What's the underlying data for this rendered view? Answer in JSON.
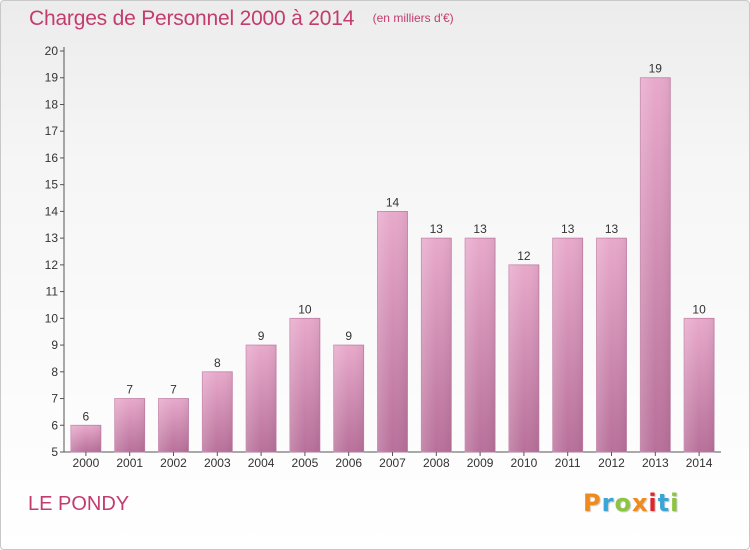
{
  "header": {
    "title": "Charges de Personnel 2000 à 2014",
    "subtitle": "(en milliers d'€)"
  },
  "footer": {
    "commune": "LE PONDY",
    "logo_text": "Proxiti",
    "logo_colors": [
      "#f08a1c",
      "#3aa5d8",
      "#8cc63e",
      "#f08a1c",
      "#e0252a",
      "#3aa5d8",
      "#8cc63e"
    ]
  },
  "chart_data": {
    "type": "bar",
    "categories": [
      "2000",
      "2001",
      "2002",
      "2003",
      "2004",
      "2005",
      "2006",
      "2007",
      "2008",
      "2009",
      "2010",
      "2011",
      "2012",
      "2013",
      "2014"
    ],
    "values": [
      6,
      7,
      7,
      8,
      9,
      10,
      9,
      14,
      13,
      13,
      12,
      13,
      13,
      19,
      10
    ],
    "data_labels": [
      "6",
      "7",
      "7",
      "8",
      "9",
      "10",
      "9",
      "14",
      "13",
      "13",
      "12",
      "13",
      "13",
      "19",
      "10"
    ],
    "y_ticks": [
      "5",
      "6",
      "7",
      "8",
      "9",
      "10",
      "11",
      "12",
      "13",
      "14",
      "15",
      "16",
      "17",
      "18",
      "19",
      "20"
    ],
    "ylim": [
      5,
      20
    ],
    "bar_color": "#d98ab4",
    "grid": false
  }
}
